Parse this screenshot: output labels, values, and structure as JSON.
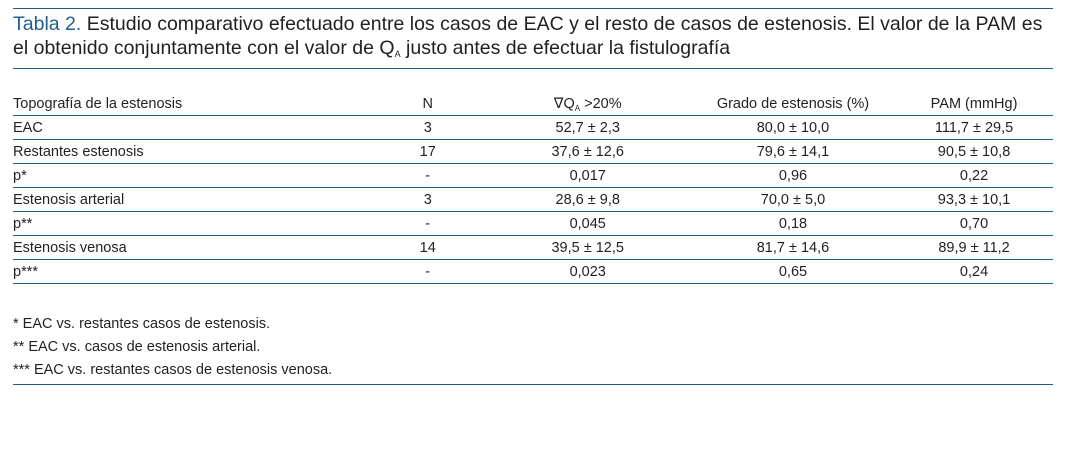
{
  "caption": {
    "label": "Tabla 2.",
    "text_1": " Estudio comparativo efectuado entre los casos de EAC y el resto de casos de estenosis. El valor de la PAM es el obtenido conjuntamente con el valor de Q",
    "sub": "A",
    "text_2": " justo antes de efectuar la fistulografía"
  },
  "table": {
    "headers": {
      "topografia": "Topografía de la estenosis",
      "n": "N",
      "q_prefix": "∇Q",
      "q_sub": "A",
      "q_suffix": " >20%",
      "grado": "Grado de estenosis (%)",
      "pam": "PAM (mmHg)"
    },
    "rows": [
      {
        "label": "EAC",
        "n": "3",
        "q": "52,7 ± 2,3",
        "grado": "80,0 ± 10,0",
        "pam": "111,7 ± 29,5"
      },
      {
        "label": "Restantes estenosis",
        "n": "17",
        "q": "37,6 ± 12,6",
        "grado": "79,6 ± 14,1",
        "pam": "90,5 ± 10,8"
      },
      {
        "label": "p*",
        "n": "-",
        "q": "0,017",
        "grado": "0,96",
        "pam": "0,22"
      },
      {
        "label": "Estenosis arterial",
        "n": "3",
        "q": "28,6 ± 9,8",
        "grado": "70,0 ± 5,0",
        "pam": "93,3 ± 10,1"
      },
      {
        "label": "p**",
        "n": "-",
        "q": "0,045",
        "grado": "0,18",
        "pam": "0,70"
      },
      {
        "label": "Estenosis venosa",
        "n": "14",
        "q": "39,5 ± 12,5",
        "grado": "81,7 ± 14,6",
        "pam": "89,9 ± 11,2"
      },
      {
        "label": "p***",
        "n": "-",
        "q": "0,023",
        "grado": "0,65",
        "pam": "0,24"
      }
    ]
  },
  "notes": [
    "* EAC vs. restantes casos de estenosis.",
    "** EAC vs. casos de estenosis arterial.",
    "*** EAC vs. restantes casos de estenosis venosa."
  ],
  "colors": {
    "accent": "#1f5f8b",
    "text": "#231f20"
  }
}
